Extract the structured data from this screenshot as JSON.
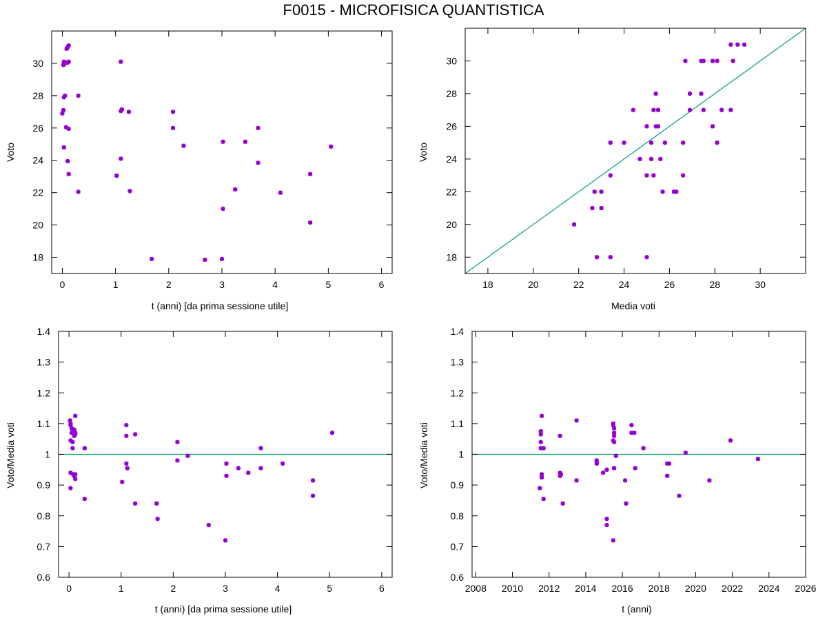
{
  "title": "F0015 - MICROFISICA QUANTISTICA",
  "colors": {
    "points": "#9400d3",
    "reference_line": "#009e73",
    "axes": "#000000"
  },
  "chart_data": [
    {
      "id": "voto-vs-t",
      "type": "scatter",
      "title": "",
      "xlabel": "t (anni) [da prima sessione utile]",
      "ylabel": "Voto",
      "xlim": [
        -0.2,
        6.2
      ],
      "ylim": [
        17,
        32
      ],
      "xticks": [
        "0",
        "1",
        "2",
        "3",
        "4",
        "5",
        "6"
      ],
      "yticks": [
        "18",
        "20",
        "22",
        "24",
        "26",
        "28",
        "30"
      ],
      "xtick_values": [
        0,
        1,
        2,
        3,
        4,
        5,
        6
      ],
      "ytick_values": [
        18,
        20,
        22,
        24,
        26,
        28,
        30
      ],
      "grid": false,
      "reference_line": null,
      "points": [
        [
          0.02,
          29.9
        ],
        [
          0.03,
          30.1
        ],
        [
          0.05,
          30.0
        ],
        [
          0.08,
          30.9
        ],
        [
          0.1,
          31.0
        ],
        [
          0.12,
          31.1
        ],
        [
          0.12,
          30.1
        ],
        [
          0.1,
          30.05
        ],
        [
          0.03,
          27.9
        ],
        [
          0.05,
          28.0
        ],
        [
          0.3,
          28.0
        ],
        [
          0.0,
          26.9
        ],
        [
          0.02,
          27.1
        ],
        [
          0.07,
          26.05
        ],
        [
          0.12,
          25.95
        ],
        [
          0.03,
          24.8
        ],
        [
          0.1,
          23.95
        ],
        [
          0.12,
          23.15
        ],
        [
          0.3,
          22.05
        ],
        [
          1.1,
          30.1
        ],
        [
          1.1,
          27.05
        ],
        [
          1.12,
          27.15
        ],
        [
          1.25,
          27.0
        ],
        [
          1.1,
          24.1
        ],
        [
          1.02,
          23.05
        ],
        [
          1.27,
          22.1
        ],
        [
          1.68,
          17.9
        ],
        [
          2.08,
          27.0
        ],
        [
          2.08,
          26.0
        ],
        [
          2.28,
          24.9
        ],
        [
          2.68,
          17.85
        ],
        [
          3.02,
          25.15
        ],
        [
          3.0,
          17.9
        ],
        [
          3.02,
          21.0
        ],
        [
          3.25,
          22.2
        ],
        [
          3.44,
          25.15
        ],
        [
          3.68,
          26.0
        ],
        [
          3.68,
          23.85
        ],
        [
          4.1,
          22.0
        ],
        [
          4.66,
          23.15
        ],
        [
          4.66,
          20.15
        ],
        [
          5.05,
          24.85
        ]
      ]
    },
    {
      "id": "voto-vs-media",
      "type": "scatter",
      "title": "",
      "xlabel": "Media voti",
      "ylabel": "Voto",
      "xlim": [
        17,
        32
      ],
      "ylim": [
        17,
        32
      ],
      "xticks": [
        "18",
        "20",
        "22",
        "24",
        "26",
        "28",
        "30"
      ],
      "yticks": [
        "18",
        "20",
        "22",
        "24",
        "26",
        "28",
        "30"
      ],
      "xtick_values": [
        18,
        20,
        22,
        24,
        26,
        28,
        30
      ],
      "ytick_values": [
        18,
        20,
        22,
        24,
        26,
        28,
        30
      ],
      "grid": false,
      "reference_line": {
        "type": "y=x"
      },
      "points": [
        [
          28.7,
          31
        ],
        [
          29.0,
          31
        ],
        [
          29.3,
          31
        ],
        [
          26.7,
          30
        ],
        [
          27.4,
          30
        ],
        [
          27.5,
          30
        ],
        [
          27.9,
          30
        ],
        [
          28.1,
          30
        ],
        [
          28.8,
          30
        ],
        [
          26.9,
          28
        ],
        [
          27.4,
          28
        ],
        [
          25.4,
          28
        ],
        [
          24.4,
          27
        ],
        [
          25.3,
          27
        ],
        [
          25.5,
          27
        ],
        [
          26.9,
          27
        ],
        [
          27.5,
          27
        ],
        [
          28.3,
          27
        ],
        [
          28.7,
          27
        ],
        [
          23.4,
          25
        ],
        [
          24.0,
          25
        ],
        [
          25.2,
          25
        ],
        [
          25.8,
          25
        ],
        [
          26.6,
          25
        ],
        [
          28.1,
          25
        ],
        [
          25.0,
          26
        ],
        [
          25.4,
          26
        ],
        [
          25.5,
          26
        ],
        [
          27.9,
          26
        ],
        [
          24.7,
          24
        ],
        [
          25.2,
          24
        ],
        [
          25.6,
          24
        ],
        [
          23.4,
          23
        ],
        [
          25.0,
          23
        ],
        [
          25.3,
          23
        ],
        [
          26.6,
          23
        ],
        [
          22.7,
          22
        ],
        [
          23.0,
          22
        ],
        [
          25.7,
          22
        ],
        [
          26.2,
          22
        ],
        [
          26.3,
          22
        ],
        [
          22.6,
          21
        ],
        [
          23.0,
          21
        ],
        [
          21.8,
          20
        ],
        [
          22.8,
          18
        ],
        [
          23.4,
          18
        ],
        [
          25.0,
          18
        ]
      ]
    },
    {
      "id": "ratio-vs-t",
      "type": "scatter",
      "title": "",
      "xlabel": "t (anni) [da prima sessione utile]",
      "ylabel": "Voto/Media voti",
      "xlim": [
        -0.2,
        6.2
      ],
      "ylim": [
        0.6,
        1.4
      ],
      "xticks": [
        "0",
        "1",
        "2",
        "3",
        "4",
        "5",
        "6"
      ],
      "yticks": [
        "0.6",
        "0.7",
        "0.8",
        "0.9",
        "1",
        "1.1",
        "1.2",
        "1.3",
        "1.4"
      ],
      "xtick_values": [
        0,
        1,
        2,
        3,
        4,
        5,
        6
      ],
      "ytick_values": [
        0.6,
        0.7,
        0.8,
        0.9,
        1.0,
        1.1,
        1.2,
        1.3,
        1.4
      ],
      "grid": false,
      "reference_line": {
        "type": "y=1"
      },
      "points": [
        [
          0.12,
          1.125
        ],
        [
          0.02,
          1.11
        ],
        [
          0.03,
          1.1
        ],
        [
          0.03,
          1.095
        ],
        [
          0.05,
          1.085
        ],
        [
          0.1,
          1.08
        ],
        [
          0.08,
          1.075
        ],
        [
          0.05,
          1.07
        ],
        [
          0.12,
          1.07
        ],
        [
          0.12,
          1.065
        ],
        [
          0.1,
          1.06
        ],
        [
          0.03,
          1.045
        ],
        [
          0.07,
          1.04
        ],
        [
          0.07,
          1.02
        ],
        [
          0.3,
          1.02
        ],
        [
          0.03,
          0.94
        ],
        [
          0.08,
          0.935
        ],
        [
          0.12,
          0.935
        ],
        [
          0.1,
          0.93
        ],
        [
          0.12,
          0.92
        ],
        [
          0.03,
          0.89
        ],
        [
          0.3,
          0.855
        ],
        [
          1.1,
          1.095
        ],
        [
          1.1,
          1.06
        ],
        [
          1.27,
          1.065
        ],
        [
          1.1,
          0.97
        ],
        [
          1.12,
          0.955
        ],
        [
          1.02,
          0.91
        ],
        [
          1.27,
          0.84
        ],
        [
          1.68,
          0.84
        ],
        [
          1.7,
          0.79
        ],
        [
          2.08,
          1.04
        ],
        [
          2.08,
          0.98
        ],
        [
          2.28,
          0.995
        ],
        [
          2.68,
          0.77
        ],
        [
          3.02,
          0.97
        ],
        [
          3.02,
          0.93
        ],
        [
          3.25,
          0.955
        ],
        [
          3.44,
          0.94
        ],
        [
          3.0,
          0.72
        ],
        [
          3.68,
          1.02
        ],
        [
          3.68,
          0.955
        ],
        [
          4.1,
          0.97
        ],
        [
          4.68,
          0.915
        ],
        [
          4.68,
          0.865
        ],
        [
          5.05,
          1.07
        ]
      ]
    },
    {
      "id": "ratio-vs-year",
      "type": "scatter",
      "title": "",
      "xlabel": "t (anni)",
      "ylabel": "Voto/Media voti",
      "xlim": [
        2007.8,
        2026
      ],
      "ylim": [
        0.6,
        1.4
      ],
      "xticks": [
        "2008",
        "2010",
        "2012",
        "2014",
        "2016",
        "2018",
        "2020",
        "2022",
        "2024",
        "2026"
      ],
      "yticks": [
        "0.6",
        "0.7",
        "0.8",
        "0.9",
        "1",
        "1.1",
        "1.2",
        "1.3",
        "1.4"
      ],
      "xtick_values": [
        2008,
        2010,
        2012,
        2014,
        2016,
        2018,
        2020,
        2022,
        2024,
        2026
      ],
      "ytick_values": [
        0.6,
        0.7,
        0.8,
        0.9,
        1.0,
        1.1,
        1.2,
        1.3,
        1.4
      ],
      "grid": false,
      "reference_line": {
        "type": "y=1"
      },
      "points": [
        [
          2011.6,
          1.125
        ],
        [
          2011.55,
          1.075
        ],
        [
          2011.55,
          1.065
        ],
        [
          2011.55,
          1.04
        ],
        [
          2011.55,
          1.02
        ],
        [
          2011.7,
          1.02
        ],
        [
          2011.6,
          0.935
        ],
        [
          2011.6,
          0.925
        ],
        [
          2011.5,
          0.89
        ],
        [
          2011.7,
          0.855
        ],
        [
          2012.6,
          1.06
        ],
        [
          2012.6,
          0.94
        ],
        [
          2012.65,
          0.935
        ],
        [
          2012.6,
          0.93
        ],
        [
          2012.75,
          0.84
        ],
        [
          2013.5,
          1.11
        ],
        [
          2013.5,
          0.915
        ],
        [
          2014.6,
          0.98
        ],
        [
          2014.6,
          0.975
        ],
        [
          2014.6,
          0.97
        ],
        [
          2014.95,
          0.94
        ],
        [
          2015.15,
          0.95
        ],
        [
          2015.15,
          0.79
        ],
        [
          2015.15,
          0.77
        ],
        [
          2015.5,
          1.1
        ],
        [
          2015.5,
          1.095
        ],
        [
          2015.55,
          1.085
        ],
        [
          2015.55,
          1.07
        ],
        [
          2015.55,
          1.06
        ],
        [
          2015.5,
          1.045
        ],
        [
          2015.55,
          1.04
        ],
        [
          2015.65,
          0.995
        ],
        [
          2015.55,
          0.955
        ],
        [
          2015.5,
          0.72
        ],
        [
          2016.15,
          0.915
        ],
        [
          2016.2,
          0.84
        ],
        [
          2016.5,
          1.095
        ],
        [
          2016.5,
          1.07
        ],
        [
          2016.65,
          1.07
        ],
        [
          2016.7,
          0.955
        ],
        [
          2017.15,
          1.02
        ],
        [
          2018.45,
          0.97
        ],
        [
          2018.55,
          0.97
        ],
        [
          2018.45,
          0.93
        ],
        [
          2019.1,
          0.865
        ],
        [
          2019.45,
          1.005
        ],
        [
          2020.75,
          0.915
        ],
        [
          2021.9,
          1.045
        ],
        [
          2023.4,
          0.985
        ]
      ]
    }
  ]
}
